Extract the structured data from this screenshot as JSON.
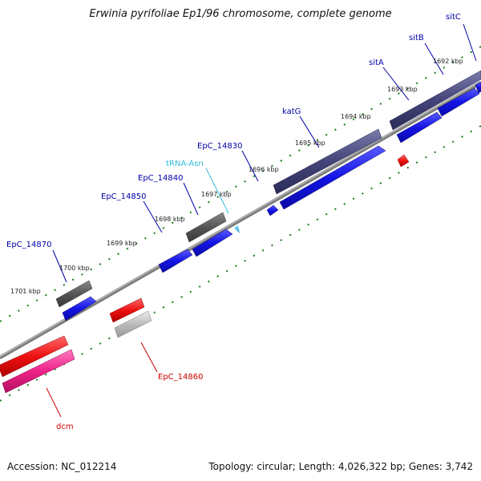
{
  "title": "Erwinia pyrifoliae Ep1/96 chromosome, complete genome",
  "footer": {
    "accession": "Accession: NC_012214",
    "summary": "Topology: circular; Length: 4,026,322 bp; Genes: 3,742"
  },
  "colors": {
    "backbone": "#888888",
    "tick": "#1a7a1a",
    "gene_forward_label": "#0000aa",
    "gene_reverse_label": "#cc0000",
    "trna_label": "#33bbdd",
    "cds_blue": "#1a1aee",
    "gene_gray": "#555555",
    "gene_slate": "#44447a",
    "cds_red": "#ee1111",
    "gene_lightgray": "#bbbbbb",
    "gene_pink": "#ee2288",
    "trna_cyan": "#33bbdd"
  },
  "scale_labels": [
    "1692 kbp",
    "1693 kbp",
    "1694 kbp",
    "1695 kbp",
    "1696 kbp",
    "1697 kbp",
    "1698 kbp",
    "1699 kbp",
    "1700 kbp",
    "1701 kbp"
  ],
  "features": [
    {
      "name": "sitC",
      "strand": "forward",
      "type": "gene"
    },
    {
      "name": "sitB",
      "strand": "forward",
      "type": "gene"
    },
    {
      "name": "sitA",
      "strand": "forward",
      "type": "gene"
    },
    {
      "name": "katG",
      "strand": "forward",
      "type": "gene"
    },
    {
      "name": "EpC_14830",
      "strand": "forward",
      "type": "gene"
    },
    {
      "name": "tRNA-Asn",
      "strand": "forward",
      "type": "tRNA"
    },
    {
      "name": "EpC_14840",
      "strand": "forward",
      "type": "gene"
    },
    {
      "name": "EpC_14850",
      "strand": "forward",
      "type": "gene"
    },
    {
      "name": "EpC_14870",
      "strand": "forward",
      "type": "gene"
    },
    {
      "name": "EpC_14860",
      "strand": "reverse",
      "type": "gene"
    },
    {
      "name": "dcm",
      "strand": "reverse",
      "type": "gene"
    }
  ]
}
